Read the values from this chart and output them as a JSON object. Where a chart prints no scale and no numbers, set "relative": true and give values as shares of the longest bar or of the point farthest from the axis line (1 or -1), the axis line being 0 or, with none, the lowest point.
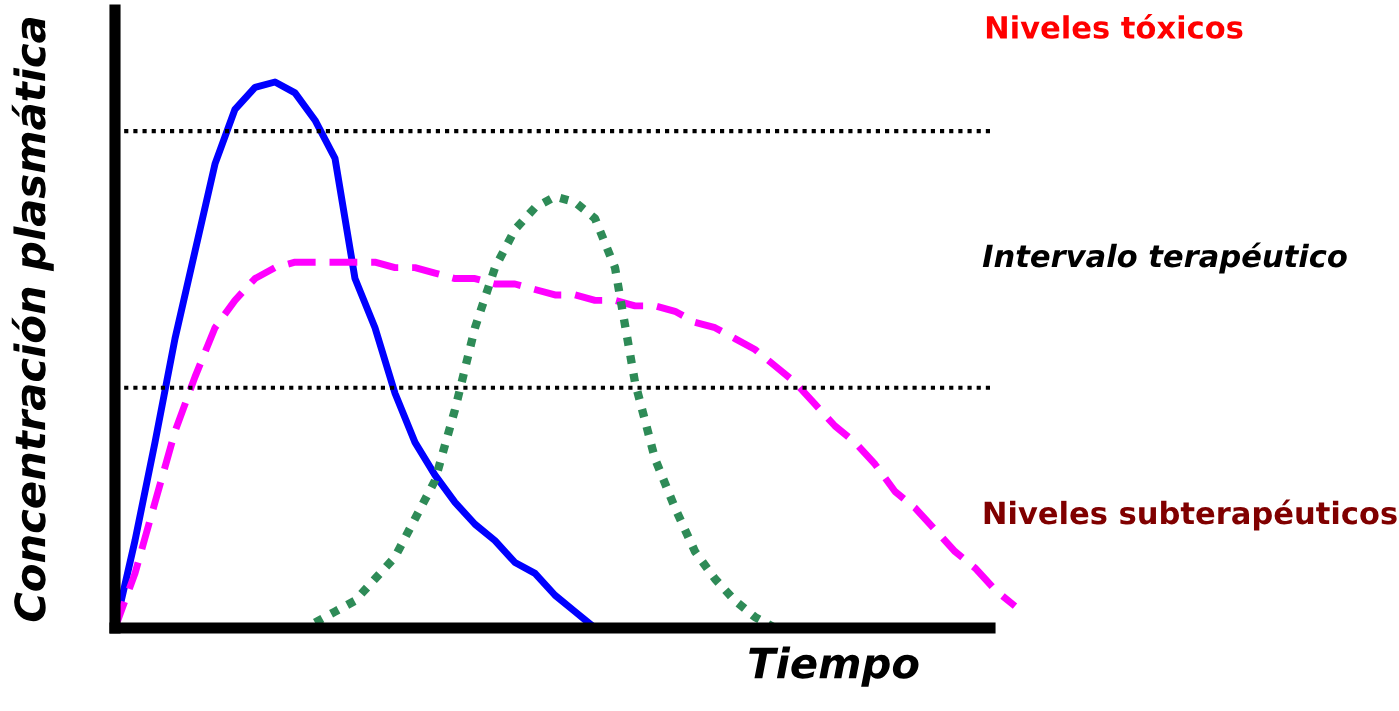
{
  "chart_data": {
    "type": "line",
    "relative": true,
    "xlabel": "Tiempo",
    "ylabel": "Concentración plasmática",
    "categories": [
      null,
      null,
      null,
      null,
      null,
      null,
      null,
      null,
      null,
      null,
      null,
      null,
      null,
      null,
      null,
      null,
      null,
      null,
      null,
      null,
      null,
      null,
      null,
      null,
      null,
      null,
      null,
      null,
      null,
      null,
      null,
      null,
      null,
      null,
      null,
      null,
      null,
      null,
      null,
      null,
      null,
      null,
      null,
      null,
      null,
      null
    ],
    "series": [
      {
        "color": "#0000ff",
        "line_style": "solid",
        "values": [
          0,
          0.16,
          0.34,
          0.53,
          0.69,
          0.85,
          0.95,
          0.99,
          1.0,
          0.98,
          0.93,
          0.86,
          0.64,
          0.55,
          0.43,
          0.34,
          0.28,
          0.23,
          0.19,
          0.16,
          0.12,
          0.1,
          0.06,
          0.03,
          0,
          null,
          null,
          null,
          null,
          null,
          null,
          null,
          null,
          null,
          null,
          null,
          null,
          null,
          null,
          null,
          null,
          null,
          null,
          null,
          null,
          null
        ]
      },
      {
        "color": "#ff00ff",
        "line_style": "dashed",
        "values": [
          0,
          0.1,
          0.23,
          0.36,
          0.46,
          0.55,
          0.6,
          0.64,
          0.66,
          0.67,
          0.67,
          0.67,
          0.67,
          0.67,
          0.66,
          0.66,
          0.65,
          0.64,
          0.64,
          0.63,
          0.63,
          0.62,
          0.61,
          0.61,
          0.6,
          0.6,
          0.59,
          0.59,
          0.58,
          0.56,
          0.55,
          0.53,
          0.51,
          0.48,
          0.45,
          0.41,
          0.37,
          0.34,
          0.3,
          0.25,
          0.22,
          0.18,
          0.14,
          0.11,
          0.07,
          0.04
        ]
      },
      {
        "color": "#2e8b57",
        "line_style": "dotted",
        "values": [
          null,
          null,
          null,
          null,
          null,
          null,
          null,
          null,
          null,
          null,
          0.01,
          0.03,
          0.05,
          0.09,
          0.13,
          0.2,
          0.27,
          0.4,
          0.55,
          0.66,
          0.73,
          0.77,
          0.79,
          0.78,
          0.75,
          0.66,
          0.45,
          0.31,
          0.22,
          0.14,
          0.09,
          0.05,
          0.02,
          0,
          null,
          null,
          null,
          null,
          null,
          null,
          null,
          null,
          null,
          null,
          null,
          null
        ]
      }
    ],
    "ref_lines": [
      {
        "axis": "y",
        "value": 0.91,
        "color": "#000000",
        "line_style": "dotted"
      },
      {
        "axis": "y",
        "value": 0.44,
        "color": "#000000",
        "line_style": "dotted"
      }
    ],
    "annotations": [
      "Niveles tóxicos",
      "Intervalo terapéutico",
      "Niveles subterapéuticos"
    ]
  }
}
